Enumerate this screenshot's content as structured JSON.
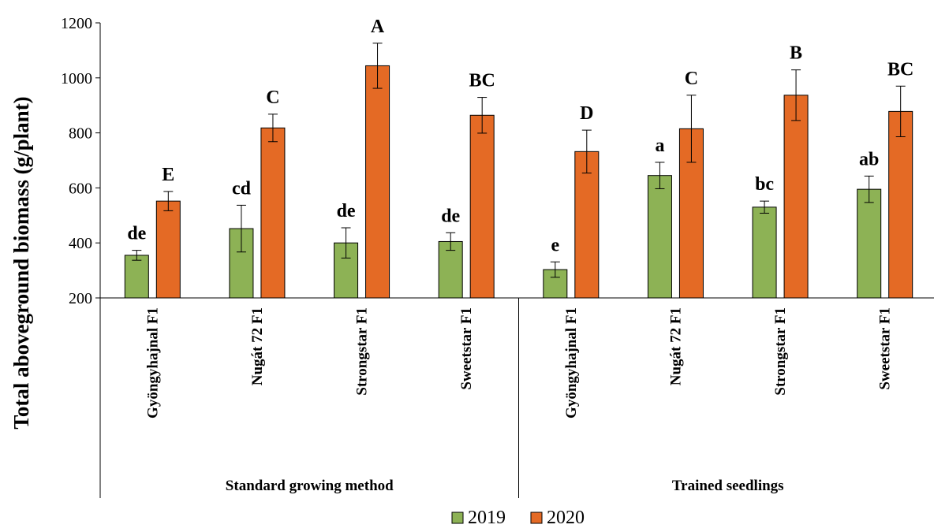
{
  "chart_data": {
    "type": "bar",
    "ylabel": "Total aboveground biomass (g/plant)",
    "ylim": [
      200,
      1200
    ],
    "yticks": [
      200,
      400,
      600,
      800,
      1000,
      1200
    ],
    "grid": false,
    "legend_position": "bottom",
    "groups": [
      {
        "label": "Standard growing method",
        "categories": [
          "Gyöngyhajnal F1",
          "Nugát 72 F1",
          "Strongstar F1",
          "Sweetstar F1"
        ]
      },
      {
        "label": "Trained seedlings",
        "categories": [
          "Gyöngyhajnal F1",
          "Nugát 72 F1",
          "Strongstar F1",
          "Sweetstar F1"
        ]
      }
    ],
    "series": [
      {
        "name": "2019",
        "color": "#8db255",
        "values": [
          355,
          452,
          400,
          405,
          303,
          645,
          530,
          595
        ],
        "errors": [
          18,
          85,
          55,
          32,
          28,
          48,
          22,
          48
        ],
        "letters": [
          "de",
          "cd",
          "de",
          "de",
          "e",
          "a",
          "bc",
          "ab"
        ]
      },
      {
        "name": "2020",
        "color": "#e46a25",
        "values": [
          552,
          818,
          1044,
          864,
          732,
          815,
          937,
          878
        ],
        "errors": [
          35,
          50,
          82,
          65,
          78,
          122,
          92,
          92
        ],
        "letters": [
          "E",
          "C",
          "A",
          "BC",
          "D",
          "C",
          "B",
          "BC"
        ]
      }
    ]
  }
}
